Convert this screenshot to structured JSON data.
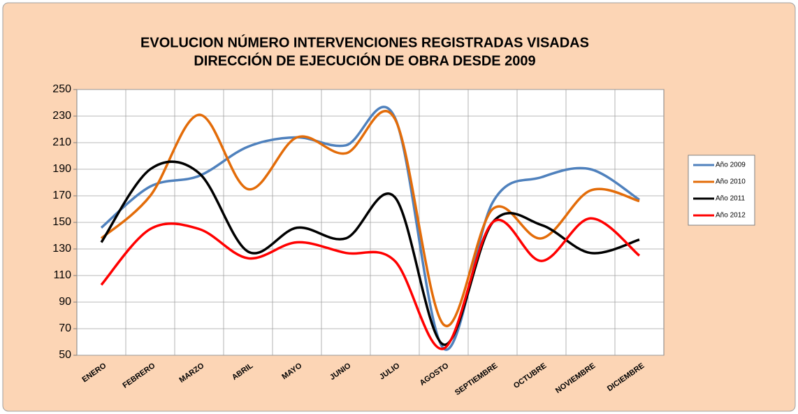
{
  "chart_data": {
    "type": "line",
    "title": [
      "EVOLUCION NÚMERO INTERVENCIONES REGISTRADAS VISADAS",
      "DIRECCIÓN DE EJECUCIÓN DE OBRA DESDE 2009"
    ],
    "categories": [
      "ENERO",
      "FEBRERO",
      "MARZO",
      "ABRIL",
      "MAYO",
      "JUNIO",
      "JULIO",
      "AGOSTO",
      "SEPTIEMBRE",
      "OCTUBRE",
      "NOVIEMBRE",
      "DICIEMBRE"
    ],
    "series": [
      {
        "name": "Año 2009",
        "color": "#4f81bd",
        "values": [
          146,
          177,
          185,
          207,
          214,
          208,
          229,
          55,
          165,
          184,
          190,
          167
        ]
      },
      {
        "name": "Año 2010",
        "color": "#e36c09",
        "values": [
          138,
          170,
          231,
          175,
          214,
          202,
          228,
          73,
          160,
          138,
          174,
          166
        ]
      },
      {
        "name": "Año 2011",
        "color": "#000000",
        "values": [
          135,
          190,
          187,
          128,
          146,
          138,
          169,
          58,
          150,
          148,
          127,
          137
        ]
      },
      {
        "name": "Año 2012",
        "color": "#ff0000",
        "values": [
          103,
          145,
          145,
          123,
          135,
          127,
          121,
          55,
          150,
          121,
          153,
          125
        ]
      }
    ],
    "ylim": [
      50,
      250
    ],
    "yticks": [
      50,
      70,
      90,
      110,
      130,
      150,
      170,
      190,
      210,
      230,
      250
    ],
    "grid": true,
    "smooth": true,
    "legend": "right"
  }
}
